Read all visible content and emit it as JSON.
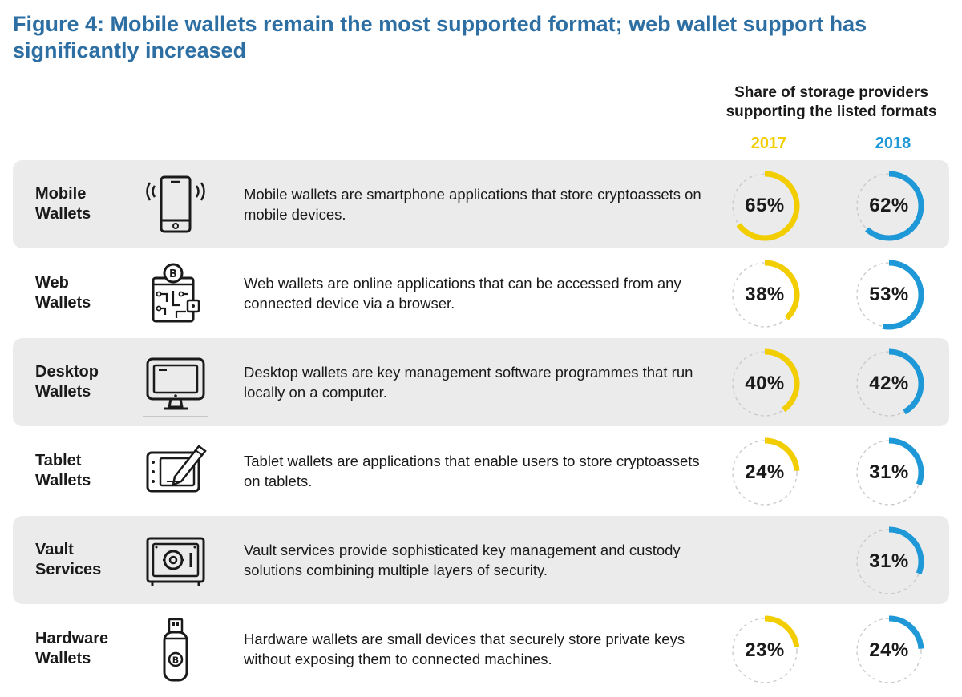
{
  "title": "Figure 4: Mobile wallets remain the most supported format; web wallet support has significantly increased",
  "column_header": "Share of storage providers supporting the listed formats",
  "years": [
    "2017",
    "2018"
  ],
  "colors": {
    "title": "#2e6fa3",
    "y2017": "#f2cd00",
    "y2018": "#1e98d7",
    "track": "#c8c8c8",
    "row_shade": "#ebebeb"
  },
  "rows": [
    {
      "name": "Mobile Wallets",
      "icon": "smartphone-icon",
      "description": "Mobile wallets are smartphone applications that store cryptoassets on mobile devices.",
      "v2017": 65,
      "v2018": 62,
      "label2017": "65%",
      "label2018": "62%"
    },
    {
      "name": "Web Wallets",
      "icon": "web-circuit-icon",
      "description": "Web wallets are online applications that can be accessed from any connected device via a browser.",
      "v2017": 38,
      "v2018": 53,
      "label2017": "38%",
      "label2018": "53%"
    },
    {
      "name": "Desktop Wallets",
      "icon": "desktop-monitor-icon",
      "description": "Desktop wallets are key management software programmes that run locally on a computer.",
      "v2017": 40,
      "v2018": 42,
      "label2017": "40%",
      "label2018": "42%"
    },
    {
      "name": "Tablet Wallets",
      "icon": "tablet-pen-icon",
      "description": "Tablet wallets are applications that enable users to store cryptoassets on tablets.",
      "v2017": 24,
      "v2018": 31,
      "label2017": "24%",
      "label2018": "31%"
    },
    {
      "name": "Vault Services",
      "icon": "vault-safe-icon",
      "description": "Vault services provide sophisticated key management and custody solutions combining multiple layers of security.",
      "v2017": null,
      "v2018": 31,
      "label2017": "",
      "label2018": "31%"
    },
    {
      "name": "Hardware Wallets",
      "icon": "usb-drive-icon",
      "description": "Hardware wallets are small devices that securely store private keys without exposing them to connected machines.",
      "v2017": 23,
      "v2018": 24,
      "label2017": "23%",
      "label2018": "24%"
    }
  ],
  "chart_data": {
    "type": "table",
    "title": "Figure 4: Mobile wallets remain the most supported format; web wallet support has significantly increased",
    "subtitle": "Share of storage providers supporting the listed formats",
    "categories": [
      "Mobile Wallets",
      "Web Wallets",
      "Desktop Wallets",
      "Tablet Wallets",
      "Vault Services",
      "Hardware Wallets"
    ],
    "series": [
      {
        "name": "2017",
        "values": [
          65,
          38,
          40,
          24,
          null,
          23
        ]
      },
      {
        "name": "2018",
        "values": [
          62,
          53,
          42,
          31,
          31,
          24
        ]
      }
    ],
    "unit": "%"
  }
}
